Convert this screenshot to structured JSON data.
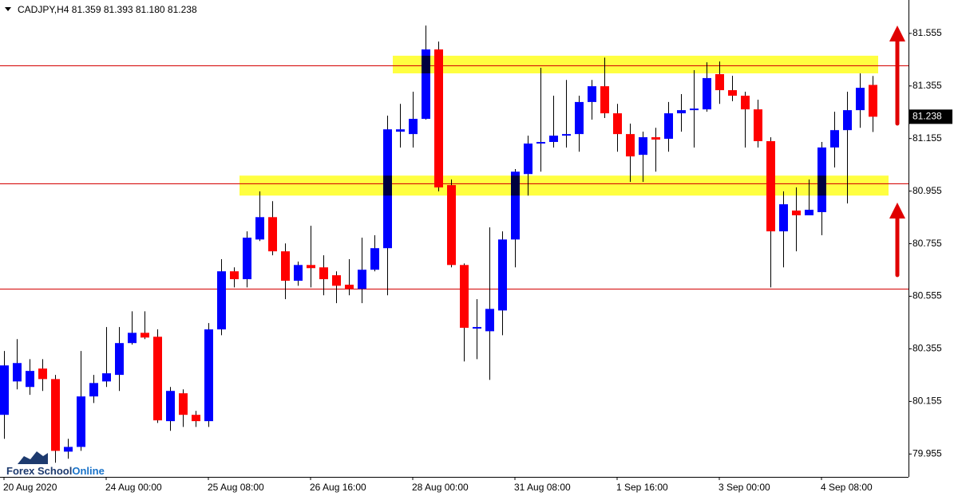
{
  "chart_data": {
    "type": "candlestick",
    "title": "CADJPY,H4  81.359 81.393 81.180 81.238",
    "categories": [
      "20 Aug 2020",
      null,
      null,
      null,
      null,
      null,
      null,
      null,
      "24 Aug 00:00",
      null,
      null,
      null,
      null,
      null,
      null,
      null,
      "25 Aug 08:00",
      null,
      null,
      null,
      null,
      null,
      null,
      null,
      "26 Aug 16:00",
      null,
      null,
      null,
      null,
      null,
      null,
      null,
      "28 Aug 00:00",
      null,
      null,
      null,
      null,
      null,
      null,
      null,
      "31 Aug 08:00",
      null,
      null,
      null,
      null,
      null,
      null,
      null,
      "1 Sep 16:00",
      null,
      null,
      null,
      null,
      null,
      null,
      null,
      "3 Sep 00:00",
      null,
      null,
      null,
      null,
      null,
      null,
      null,
      "4 Sep 08:00",
      null,
      null,
      null,
      null
    ],
    "open": [
      80.104,
      80.231,
      80.21,
      80.28,
      80.24,
      79.964,
      79.982,
      80.174,
      80.231,
      80.256,
      80.377,
      80.416,
      80.401,
      80.08,
      80.186,
      80.104,
      80.08,
      80.429,
      80.65,
      80.62,
      80.771,
      80.856,
      80.726,
      80.614,
      80.674,
      80.665,
      80.635,
      80.599,
      80.583,
      80.656,
      80.738,
      81.181,
      81.172,
      81.23,
      81.494,
      80.978,
      80.674,
      80.432,
      80.422,
      80.501,
      80.771,
      81.02,
      81.136,
      81.142,
      81.166,
      81.172,
      81.294,
      81.354,
      81.251,
      81.172,
      81.093,
      81.16,
      81.154,
      81.251,
      81.263,
      81.266,
      81.4,
      81.339,
      81.318,
      81.266,
      81.145,
      80.802,
      80.881,
      80.863,
      80.875,
      81.121,
      81.187,
      81.263,
      81.359
    ],
    "high": [
      80.347,
      80.392,
      80.316,
      80.316,
      80.256,
      80.013,
      80.347,
      80.256,
      80.438,
      80.438,
      80.498,
      80.498,
      80.429,
      80.21,
      80.201,
      80.119,
      80.453,
      80.696,
      80.665,
      80.802,
      80.954,
      80.917,
      80.756,
      80.687,
      80.823,
      80.711,
      80.65,
      80.696,
      80.778,
      80.787,
      81.242,
      81.287,
      81.333,
      81.585,
      81.524,
      80.999,
      80.68,
      80.544,
      80.817,
      80.802,
      81.039,
      81.166,
      81.424,
      81.318,
      81.378,
      81.318,
      81.378,
      81.463,
      81.287,
      81.212,
      81.181,
      81.196,
      81.294,
      81.324,
      81.415,
      81.445,
      81.448,
      81.394,
      81.333,
      81.303,
      81.16,
      80.954,
      80.969,
      80.999,
      81.142,
      81.257,
      81.333,
      81.403,
      81.393
    ],
    "low": [
      80.013,
      80.201,
      80.18,
      80.195,
      79.922,
      79.937,
      79.967,
      80.149,
      80.21,
      80.195,
      80.371,
      80.392,
      80.073,
      80.043,
      80.058,
      80.058,
      80.058,
      80.407,
      80.589,
      80.589,
      80.765,
      80.711,
      80.544,
      80.595,
      80.589,
      80.559,
      80.529,
      80.559,
      80.529,
      80.65,
      80.559,
      81.121,
      81.121,
      81.227,
      80.954,
      80.665,
      80.307,
      80.316,
      80.237,
      80.407,
      80.665,
      80.938,
      81.029,
      81.121,
      81.121,
      81.105,
      81.227,
      81.233,
      81.105,
      80.99,
      80.99,
      81.029,
      81.105,
      81.181,
      81.121,
      81.257,
      81.287,
      81.297,
      81.121,
      81.121,
      80.589,
      80.665,
      80.726,
      80.863,
      80.787,
      81.045,
      80.908,
      81.196,
      81.18
    ],
    "close": [
      80.292,
      80.301,
      80.271,
      80.24,
      79.967,
      79.982,
      80.174,
      80.225,
      80.262,
      80.377,
      80.416,
      80.398,
      80.083,
      80.195,
      80.104,
      80.08,
      80.429,
      80.65,
      80.62,
      80.778,
      80.856,
      80.726,
      80.614,
      80.674,
      80.662,
      80.62,
      80.595,
      80.583,
      80.656,
      80.738,
      81.19,
      81.19,
      81.23,
      81.494,
      80.969,
      80.674,
      80.435,
      80.438,
      80.507,
      80.771,
      81.029,
      81.136,
      81.142,
      81.166,
      81.172,
      81.294,
      81.354,
      81.251,
      81.172,
      81.087,
      81.16,
      81.151,
      81.251,
      81.263,
      81.269,
      81.385,
      81.339,
      81.318,
      81.266,
      81.145,
      80.802,
      80.905,
      80.863,
      80.884,
      81.121,
      81.187,
      81.263,
      81.348,
      81.238
    ],
    "up_color": "#0000ff",
    "down_color": "#ff0000",
    "ylim": [
      79.868,
      81.682
    ],
    "yticks": [
      79.955,
      80.155,
      80.355,
      80.555,
      80.755,
      80.955,
      81.155,
      81.355,
      81.555
    ],
    "hlines": [
      81.433,
      80.984,
      80.583
    ],
    "hline_color": "#d40000",
    "zones": [
      {
        "from": 81.47,
        "to": 81.403
      },
      {
        "from": 81.014,
        "to": 80.938
      }
    ],
    "zone_color": "#ffff40"
  },
  "logo": {
    "text": "Forex School",
    "accent": "Online"
  }
}
